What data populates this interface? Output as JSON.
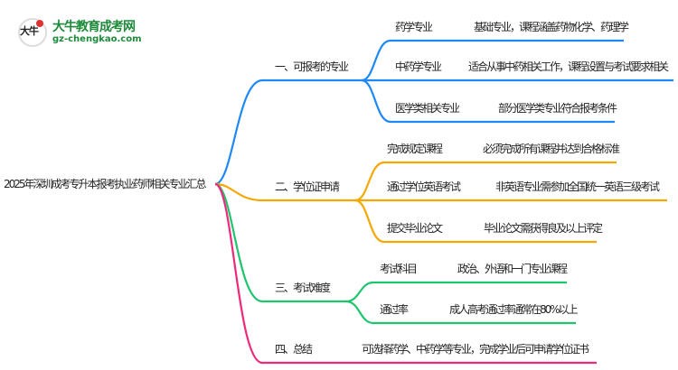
{
  "logo": {
    "name": "大牛教育成考网",
    "url": "gz-chengkao.com",
    "mark": "大牛"
  },
  "root": "2025年深圳成考专升本报考执业药师相关专业汇总",
  "colors": {
    "branch1": "#1e88f5",
    "branch2": "#f5a800",
    "branch3": "#1fc46e",
    "branch4": "#f0287a"
  },
  "branches": [
    {
      "label": "一、可报考的专业",
      "items": [
        {
          "label": "药学专业",
          "desc": "基础专业，课程涵盖药物化学、药理学"
        },
        {
          "label": "中药学专业",
          "desc": "适合从事中药相关工作，课程设置与考试要求相关"
        },
        {
          "label": "医学类相关专业",
          "desc": "部分医学类专业符合报考条件"
        }
      ]
    },
    {
      "label": "二、学位证申请",
      "items": [
        {
          "label": "完成规定课程",
          "desc": "必须完成所有课程并达到合格标准"
        },
        {
          "label": "通过学位英语考试",
          "desc": "非英语专业需参加全国统一英语三级考试"
        },
        {
          "label": "提交毕业论文",
          "desc": "毕业论文需获得良及以上评定"
        }
      ]
    },
    {
      "label": "三、考试难度",
      "items": [
        {
          "label": "考试科目",
          "desc": "政治、外语和一门专业课程"
        },
        {
          "label": "通过率",
          "desc": "成人高考通过率通常在80%以上"
        }
      ]
    },
    {
      "label": "四、总结",
      "desc": "可选择药学、中药学等专业，完成学业后可申请学位证书"
    }
  ]
}
